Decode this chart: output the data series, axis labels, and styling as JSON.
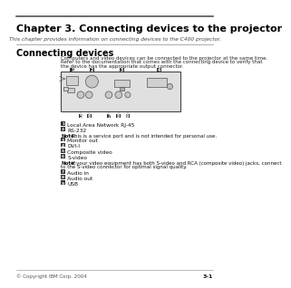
{
  "title": "Chapter 3. Connecting devices to the projector",
  "subtitle": "This chapter provides information on connecting devices to the C400 projector.",
  "section": "Connecting devices",
  "body_text_lines": [
    "Computers and video devices can be connected to the projector at the same time.",
    "Refer to the documentation that comes with the connecting device to verify that",
    "the device has the appropriate output connector."
  ],
  "items": [
    {
      "num": "1",
      "text": "Local Area Network RJ-45"
    },
    {
      "num": "2",
      "text": "RS-232"
    },
    {
      "note": "Note: This is a service port and is not intended for personal use."
    },
    {
      "num": "3",
      "text": "Monitor out"
    },
    {
      "num": "4",
      "text": "DVI-I"
    },
    {
      "num": "5",
      "text": "Composite video"
    },
    {
      "num": "6",
      "text": "S-video"
    },
    {
      "note2": [
        "Note: If your video equipment has both S-video and RCA (composite video) jacks, connect",
        "to the S-video connector for optimal signal quality."
      ]
    },
    {
      "num": "7",
      "text": "Audio in"
    },
    {
      "num": "8",
      "text": "Audio out"
    },
    {
      "num": "9",
      "text": "USB"
    }
  ],
  "footer_left": "© Copyright IBM Corp. 2004",
  "footer_right": "3-1",
  "bg_color": "#ffffff",
  "text_color": "#000000",
  "title_color": "#000000",
  "gray_line": "#888888",
  "dark_line": "#555555",
  "panel_fill": "#e0e0e0",
  "panel_edge": "#444444",
  "num_box_fill": "#333333",
  "num_box_text": "#ffffff",
  "connector_fill": "#c0c0c0",
  "connector_edge": "#555555"
}
